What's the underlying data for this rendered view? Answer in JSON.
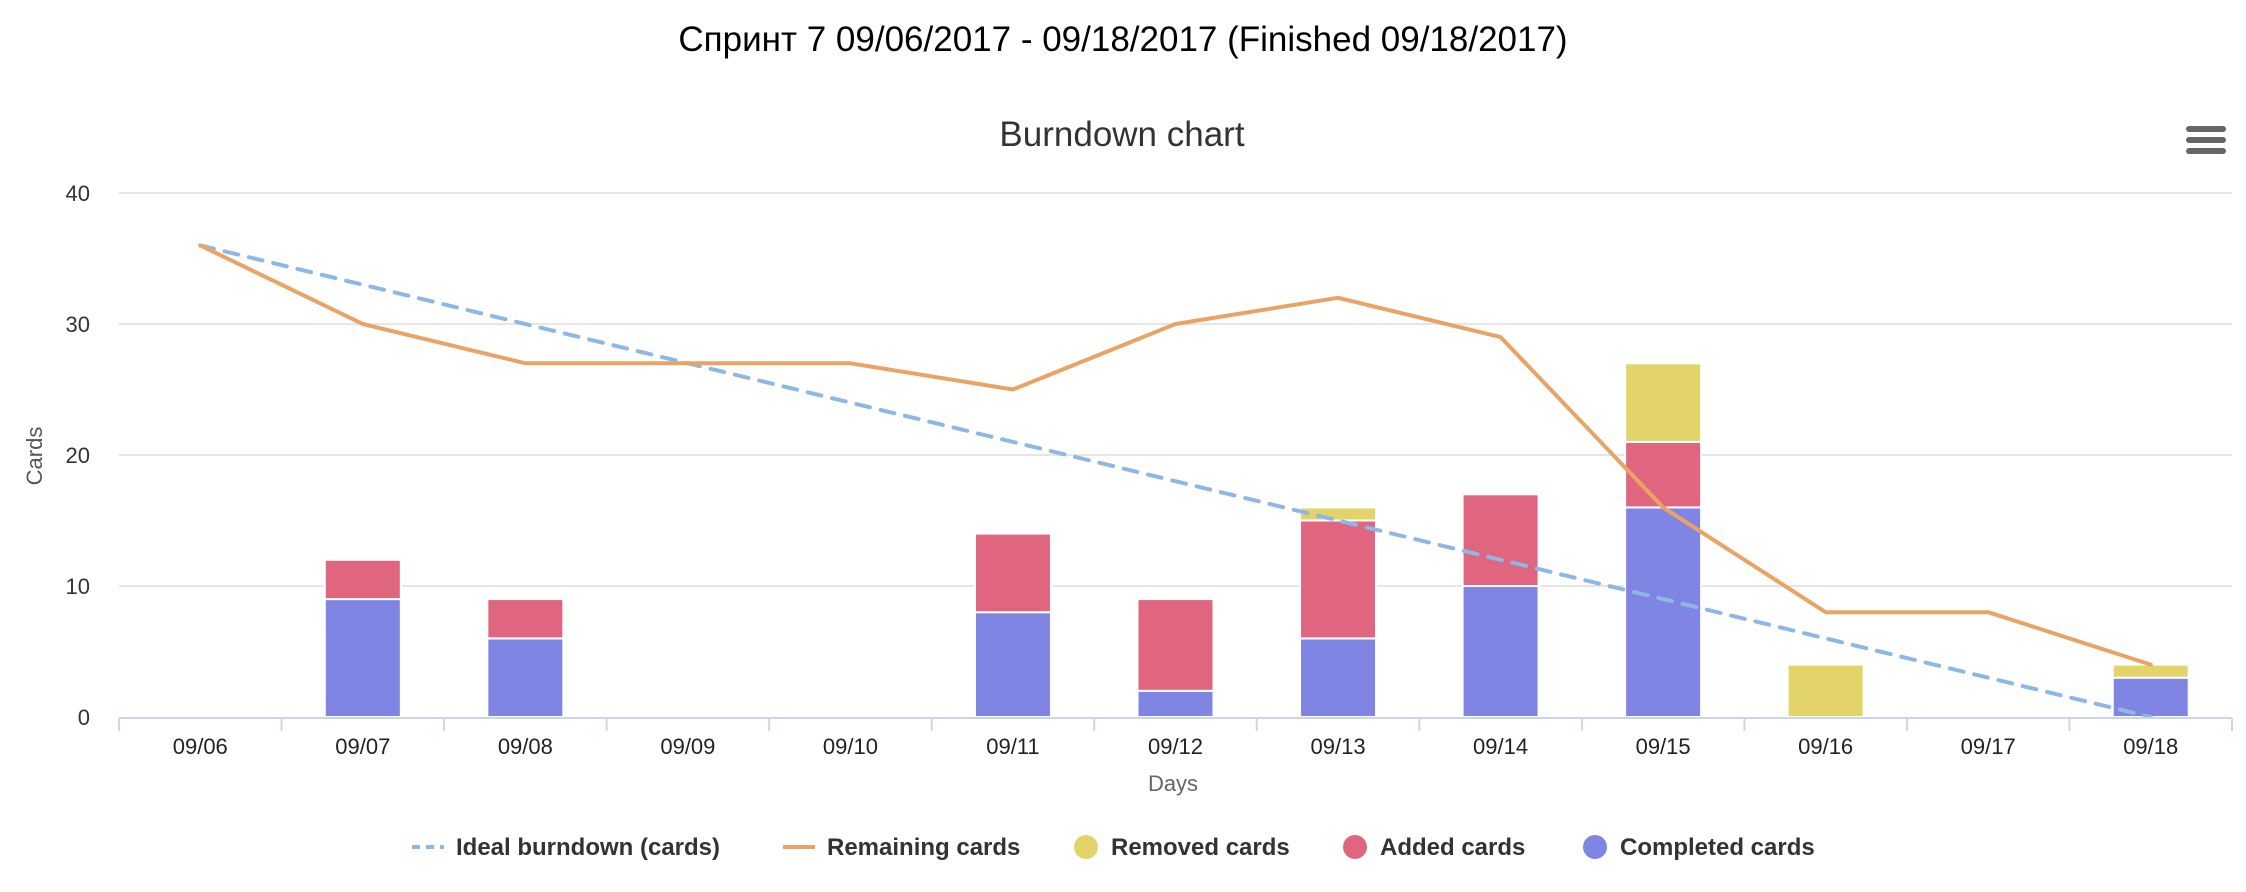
{
  "page": {
    "title": "Спринт 7 09/06/2017 - 09/18/2017 (Finished 09/18/2017)"
  },
  "menu": {
    "icon": "hamburger-menu-icon"
  },
  "chart_data": {
    "type": "bar",
    "title": "Burndown chart",
    "xlabel": "Days",
    "ylabel": "Cards",
    "ylim": [
      0,
      40
    ],
    "yticks": [
      0,
      10,
      20,
      30,
      40
    ],
    "grid": true,
    "legend_position": "bottom",
    "categories": [
      "09/06",
      "09/07",
      "09/08",
      "09/09",
      "09/10",
      "09/11",
      "09/12",
      "09/13",
      "09/14",
      "09/15",
      "09/16",
      "09/17",
      "09/18"
    ],
    "stacked_series": [
      {
        "name": "Completed cards",
        "color": "#8085e3",
        "values": [
          0,
          9,
          6,
          0,
          0,
          8,
          2,
          6,
          10,
          16,
          0,
          0,
          3
        ]
      },
      {
        "name": "Added cards",
        "color": "#e0657f",
        "values": [
          0,
          3,
          3,
          0,
          0,
          6,
          7,
          9,
          7,
          5,
          0,
          0,
          0
        ]
      },
      {
        "name": "Removed cards",
        "color": "#e3d46a",
        "values": [
          0,
          0,
          0,
          0,
          0,
          0,
          0,
          1,
          0,
          6,
          4,
          0,
          1
        ]
      }
    ],
    "line_series": [
      {
        "name": "Ideal burndown (cards)",
        "color": "#8db8e5",
        "dashed": true,
        "values": [
          36,
          33,
          30,
          27,
          24,
          21,
          18,
          15,
          12,
          9,
          6,
          3,
          0
        ]
      },
      {
        "name": "Remaining cards",
        "color": "#e9a465",
        "dashed": false,
        "values": [
          36,
          30,
          27,
          27,
          27,
          25,
          30,
          32,
          29,
          16,
          8,
          8,
          4
        ]
      }
    ],
    "legend": [
      {
        "name": "Ideal burndown (cards)",
        "symbol": "dashed-line",
        "color": "#8db8e5"
      },
      {
        "name": "Remaining cards",
        "symbol": "line",
        "color": "#e9a465"
      },
      {
        "name": "Removed cards",
        "symbol": "circle",
        "color": "#e3d46a"
      },
      {
        "name": "Added cards",
        "symbol": "circle",
        "color": "#e0657f"
      },
      {
        "name": "Completed cards",
        "symbol": "circle",
        "color": "#8085e3"
      }
    ]
  }
}
